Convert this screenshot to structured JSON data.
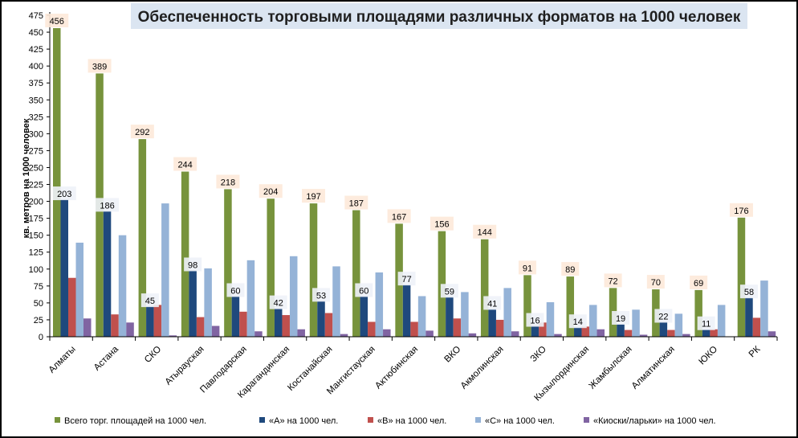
{
  "chart_data": {
    "type": "bar",
    "title": "Обеспеченность торговыми площадями различных форматов на 1000 человек",
    "ylabel": "кв. метров на 1000 человек",
    "xlabel": "",
    "ylim": [
      0,
      475
    ],
    "ytick_step": 25,
    "grid": false,
    "legend_position": "bottom",
    "categories": [
      "Алматы",
      "Астана",
      "СКО",
      "Атырауская",
      "Павлодарская",
      "Карагандинская",
      "Костанайская",
      "Мангистауская",
      "Актюбинская",
      "ВКО",
      "Акмолинская",
      "ЗКО",
      "Кызылординская",
      "Жамбылская",
      "Алматинская",
      "ЮКО",
      "РК"
    ],
    "series": [
      {
        "name": "Всего торг. площадей на 1000 чел.",
        "color": "#77933c",
        "values": [
          456,
          389,
          292,
          244,
          218,
          204,
          197,
          187,
          167,
          156,
          144,
          91,
          89,
          72,
          70,
          69,
          176
        ],
        "labels_shown": true,
        "label_bg": "#fde9d9"
      },
      {
        "name": "«А» на 1000 чел.",
        "color": "#1f497d",
        "values": [
          203,
          186,
          45,
          98,
          60,
          42,
          53,
          60,
          77,
          59,
          41,
          16,
          14,
          19,
          22,
          11,
          58
        ],
        "labels_shown": true,
        "label_bg": "#eef2f8"
      },
      {
        "name": "«В» на 1000 чел.",
        "color": "#c0504d",
        "values": [
          87,
          33,
          47,
          29,
          37,
          32,
          35,
          22,
          22,
          27,
          25,
          21,
          15,
          10,
          10,
          11,
          28
        ],
        "labels_shown": false
      },
      {
        "name": "«С» на 1000 чел.",
        "color": "#95b3d7",
        "values": [
          139,
          150,
          197,
          101,
          113,
          119,
          104,
          95,
          60,
          66,
          72,
          51,
          47,
          40,
          34,
          47,
          83
        ],
        "labels_shown": false
      },
      {
        "name": "«Киоски/ларьки» на 1000 чел.",
        "color": "#8064a2",
        "values": [
          27,
          21,
          2,
          16,
          8,
          11,
          4,
          11,
          9,
          5,
          8,
          4,
          11,
          3,
          4,
          0,
          8
        ],
        "labels_shown": false
      }
    ]
  }
}
